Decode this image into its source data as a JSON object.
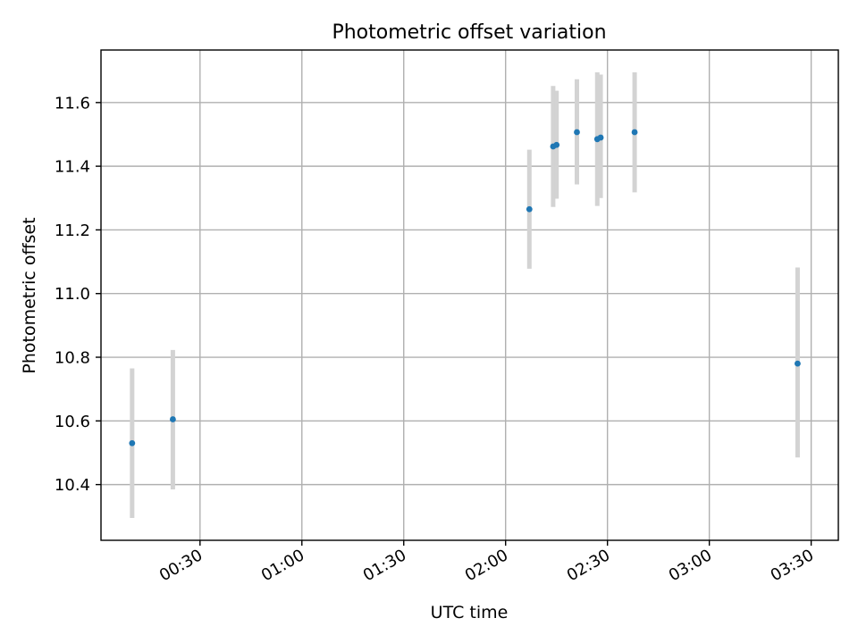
{
  "chart_data": {
    "type": "scatter",
    "title": "Photometric offset variation",
    "xlabel": "UTC time",
    "ylabel": "Photometric offset",
    "x_unit": "minutes",
    "xlim": [
      "00:00:50",
      "03:38:00"
    ],
    "ylim": [
      10.225,
      11.765
    ],
    "x_ticks": [
      "00:30",
      "01:00",
      "01:30",
      "02:00",
      "02:30",
      "03:00",
      "03:30"
    ],
    "y_ticks": [
      "10.4",
      "10.6",
      "10.8",
      "11.0",
      "11.2",
      "11.4",
      "11.6"
    ],
    "grid": true,
    "colors": {
      "marker": "#1f77b4",
      "errorbar": "#d3d3d3"
    },
    "series": [
      {
        "points": [
          {
            "x": "00:10",
            "y": 10.53,
            "ylow": 10.295,
            "yhigh": 10.765
          },
          {
            "x": "00:22",
            "y": 10.605,
            "ylow": 10.385,
            "yhigh": 10.823
          },
          {
            "x": "02:07",
            "y": 11.265,
            "ylow": 11.078,
            "yhigh": 11.452
          },
          {
            "x": "02:14",
            "y": 11.462,
            "ylow": 11.272,
            "yhigh": 11.652
          },
          {
            "x": "02:15",
            "y": 11.467,
            "ylow": 11.298,
            "yhigh": 11.637
          },
          {
            "x": "02:21",
            "y": 11.507,
            "ylow": 11.343,
            "yhigh": 11.673
          },
          {
            "x": "02:27",
            "y": 11.485,
            "ylow": 11.275,
            "yhigh": 11.695
          },
          {
            "x": "02:28",
            "y": 11.49,
            "ylow": 11.3,
            "yhigh": 11.688
          },
          {
            "x": "02:38",
            "y": 11.507,
            "ylow": 11.318,
            "yhigh": 11.695
          },
          {
            "x": "03:26",
            "y": 10.78,
            "ylow": 10.485,
            "yhigh": 11.082
          }
        ]
      }
    ]
  }
}
